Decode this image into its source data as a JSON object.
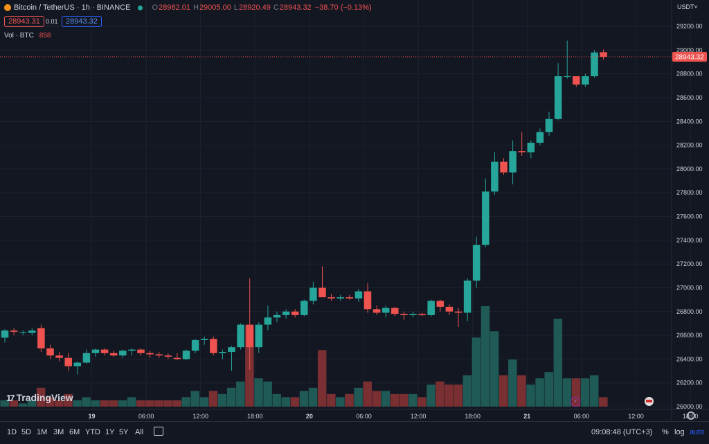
{
  "header": {
    "symbol": "Bitcoin / TetherUS · 1h · BINANCE",
    "o_label": "O",
    "o_value": "28982.01",
    "h_label": "H",
    "h_value": "29005.00",
    "l_label": "L",
    "l_value": "28920.49",
    "c_label": "C",
    "c_value": "28943.32",
    "change": "−38.70 (−0.13%)"
  },
  "quote": {
    "bid": "28943.31",
    "spread": "0.01",
    "ask": "28943.32"
  },
  "volume_legend": {
    "label": "Vol · BTC",
    "value": "858"
  },
  "currency": "USDT˅",
  "watermark": "TradingView",
  "watermark_mark": "17",
  "last_price_label": "28943.32",
  "timeframes": [
    "1D",
    "5D",
    "1M",
    "3M",
    "6M",
    "YTD",
    "1Y",
    "5Y",
    "All"
  ],
  "clock": "09:08:48 (UTC+3)",
  "scale_controls": {
    "percent": "%",
    "log": "log",
    "auto": "auto"
  },
  "icons": {
    "calendar": "calendar-range-icon",
    "gear": "settings-gear-icon",
    "flash": "lightning-event-icon",
    "flag": "us-flag-event-icon",
    "logo": "bitcoin-logo-icon",
    "status": "market-open-dot-icon"
  },
  "colors": {
    "background": "#131722",
    "up": "#26a69a",
    "down": "#ef5350",
    "vol_up": "#1f5a56",
    "vol_down": "#7a3033"
  },
  "chart_data": {
    "type": "candlestick",
    "y_ticks": [
      "29200.00",
      "29000.00",
      "28800.00",
      "28600.00",
      "28400.00",
      "28200.00",
      "28000.00",
      "27800.00",
      "27600.00",
      "27400.00",
      "27200.00",
      "27000.00",
      "26800.00",
      "26600.00",
      "26400.00",
      "26200.00",
      "26000.00"
    ],
    "ylim": [
      26000,
      29200
    ],
    "x_ticks": [
      {
        "label": "19",
        "i": 5
      },
      {
        "label": "06:00",
        "i": 11
      },
      {
        "label": "12:00",
        "i": 17
      },
      {
        "label": "18:00",
        "i": 23
      },
      {
        "label": "20",
        "i": 29
      },
      {
        "label": "06:00",
        "i": 35
      },
      {
        "label": "12:00",
        "i": 41
      },
      {
        "label": "18:00",
        "i": 47
      },
      {
        "label": "21",
        "i": 53
      },
      {
        "label": "06:00",
        "i": 59
      },
      {
        "label": "12:00",
        "i": 65
      },
      {
        "label": "18:00",
        "i": 71
      }
    ],
    "last_price": 28943.32,
    "candles": [
      [
        26580,
        26650,
        26540,
        26640,
        2
      ],
      [
        26640,
        26660,
        26600,
        26630,
        2
      ],
      [
        26620,
        26640,
        26600,
        26625,
        1
      ],
      [
        26620,
        26660,
        26600,
        26640,
        2
      ],
      [
        26660,
        26690,
        26460,
        26490,
        6
      ],
      [
        26490,
        26520,
        26400,
        26430,
        3
      ],
      [
        26430,
        26460,
        26380,
        26410,
        2
      ],
      [
        26410,
        26450,
        26300,
        26340,
        4
      ],
      [
        26340,
        26380,
        26270,
        26370,
        2
      ],
      [
        26370,
        26480,
        26360,
        26450,
        3
      ],
      [
        26450,
        26490,
        26420,
        26480,
        2
      ],
      [
        26480,
        26490,
        26430,
        26450,
        2
      ],
      [
        26450,
        26470,
        26420,
        26430,
        2
      ],
      [
        26430,
        26480,
        26410,
        26470,
        2
      ],
      [
        26470,
        26490,
        26430,
        26480,
        3
      ],
      [
        26480,
        26490,
        26430,
        26450,
        2
      ],
      [
        26450,
        26470,
        26410,
        26440,
        2
      ],
      [
        26440,
        26460,
        26410,
        26430,
        2
      ],
      [
        26430,
        26450,
        26400,
        26420,
        2
      ],
      [
        26410,
        26450,
        26390,
        26400,
        2
      ],
      [
        26400,
        26480,
        26390,
        26470,
        3
      ],
      [
        26470,
        26570,
        26450,
        26560,
        5
      ],
      [
        26560,
        26590,
        26520,
        26570,
        3
      ],
      [
        26570,
        26590,
        26430,
        26450,
        5
      ],
      [
        26450,
        26480,
        26400,
        26460,
        4
      ],
      [
        26460,
        26510,
        26300,
        26500,
        6
      ],
      [
        26500,
        26700,
        26480,
        26690,
        8
      ],
      [
        26690,
        27080,
        26310,
        26500,
        26
      ],
      [
        26500,
        26710,
        26450,
        26690,
        9
      ],
      [
        26690,
        26850,
        26640,
        26750,
        8
      ],
      [
        26750,
        26800,
        26710,
        26770,
        4
      ],
      [
        26770,
        26820,
        26740,
        26800,
        3
      ],
      [
        26800,
        26820,
        26750,
        26770,
        3
      ],
      [
        26770,
        26900,
        26760,
        26890,
        5
      ],
      [
        26890,
        27050,
        26860,
        27000,
        6
      ],
      [
        27000,
        27180,
        26920,
        26920,
        18
      ],
      [
        26920,
        26950,
        26890,
        26910,
        4
      ],
      [
        26910,
        26940,
        26890,
        26920,
        3
      ],
      [
        26920,
        26940,
        26900,
        26910,
        4
      ],
      [
        26910,
        26990,
        26880,
        26970,
        6
      ],
      [
        26970,
        27040,
        26790,
        26820,
        8
      ],
      [
        26820,
        26850,
        26770,
        26790,
        5
      ],
      [
        26790,
        26850,
        26750,
        26830,
        5
      ],
      [
        26830,
        26840,
        26760,
        26780,
        4
      ],
      [
        26780,
        26800,
        26730,
        26770,
        4
      ],
      [
        26770,
        26800,
        26750,
        26780,
        4
      ],
      [
        26780,
        26790,
        26760,
        26770,
        3
      ],
      [
        26770,
        26900,
        26760,
        26890,
        7
      ],
      [
        26890,
        26900,
        26800,
        26840,
        8
      ],
      [
        26840,
        26860,
        26770,
        26800,
        7
      ],
      [
        26800,
        26830,
        26670,
        26790,
        7
      ],
      [
        26790,
        27080,
        26720,
        27060,
        10
      ],
      [
        27060,
        27430,
        27000,
        27360,
        22
      ],
      [
        27360,
        27920,
        27340,
        27810,
        32
      ],
      [
        27810,
        28140,
        27780,
        28060,
        24
      ],
      [
        28060,
        28090,
        27950,
        27970,
        10
      ],
      [
        27970,
        28240,
        27870,
        28150,
        15
      ],
      [
        28150,
        28310,
        28110,
        28140,
        10
      ],
      [
        28140,
        28240,
        28090,
        28220,
        7
      ],
      [
        28220,
        28340,
        28200,
        28310,
        9
      ],
      [
        28310,
        28480,
        28280,
        28420,
        11
      ],
      [
        28420,
        28890,
        28410,
        28780,
        28
      ],
      [
        28780,
        29080,
        28760,
        28780,
        9
      ],
      [
        28780,
        28780,
        28690,
        28710,
        9
      ],
      [
        28710,
        28800,
        28690,
        28780,
        9
      ],
      [
        28780,
        29000,
        28770,
        28980,
        10
      ],
      [
        28982.01,
        29005,
        28920.49,
        28943.32,
        3
      ]
    ]
  }
}
